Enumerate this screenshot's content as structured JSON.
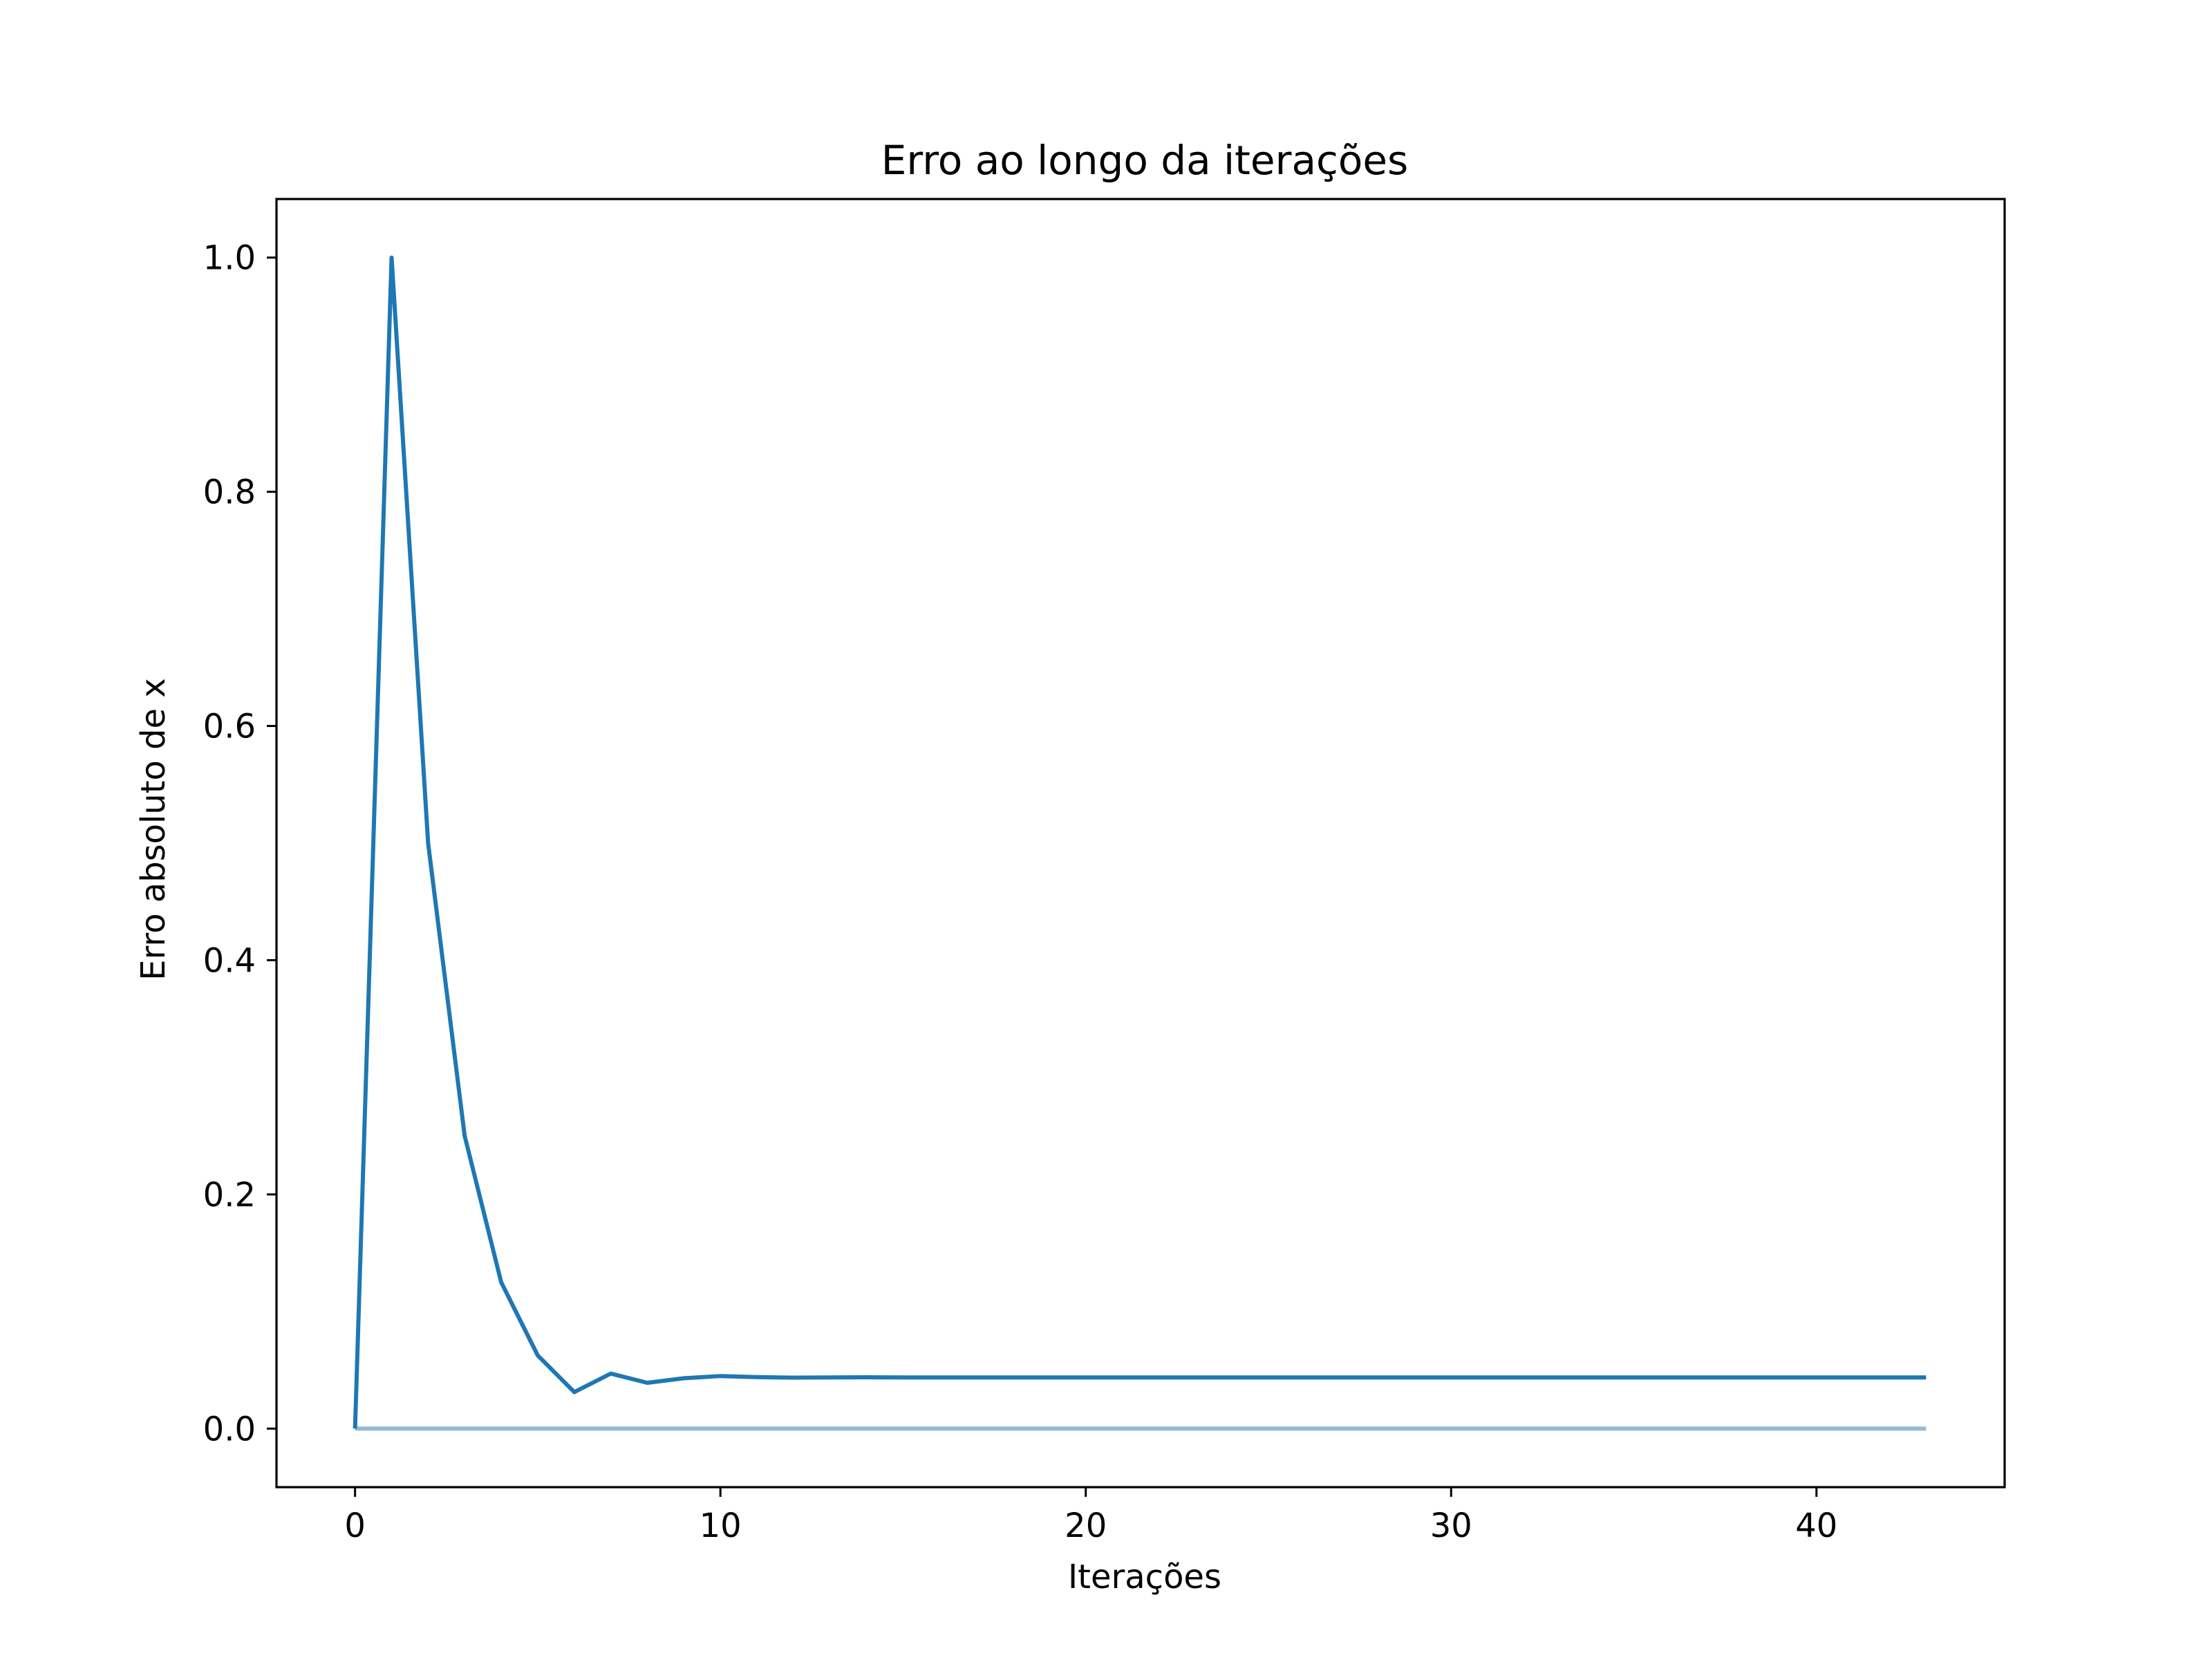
{
  "chart_data": {
    "type": "line",
    "title": "Erro ao longo da iterações",
    "xlabel": "Iterações",
    "ylabel": "Erro absoluto de x",
    "xlim": [
      -2.15,
      45.15
    ],
    "ylim": [
      -0.05,
      1.05
    ],
    "xticks": [
      0,
      10,
      20,
      30,
      40
    ],
    "xtick_labels": [
      "0",
      "10",
      "20",
      "30",
      "40"
    ],
    "yticks": [
      0.0,
      0.2,
      0.4,
      0.6,
      0.8,
      1.0
    ],
    "ytick_labels": [
      "0.0",
      "0.2",
      "0.4",
      "0.6",
      "0.8",
      "1.0"
    ],
    "grid": false,
    "legend": "none",
    "series": [
      {
        "color": "#1f77b4",
        "opacity": 1,
        "x": [
          0,
          1,
          2,
          3,
          4,
          5,
          6,
          7,
          8,
          9,
          10,
          11,
          12,
          13,
          14,
          15,
          16,
          17,
          18,
          19,
          20,
          21,
          22,
          23,
          24,
          25,
          26,
          27,
          28,
          29,
          30,
          31,
          32,
          33,
          34,
          35,
          36,
          37,
          38,
          39,
          40,
          41,
          42,
          43
        ],
        "values": [
          0.0,
          1.0,
          0.5,
          0.25,
          0.125,
          0.0625,
          0.0312,
          0.047,
          0.0391,
          0.043,
          0.0449,
          0.044,
          0.0435,
          0.0437,
          0.0438,
          0.0437,
          0.0437,
          0.0437,
          0.0437,
          0.0437,
          0.0437,
          0.0437,
          0.0437,
          0.0437,
          0.0437,
          0.0437,
          0.0437,
          0.0437,
          0.0437,
          0.0437,
          0.0437,
          0.0437,
          0.0437,
          0.0437,
          0.0437,
          0.0437,
          0.0437,
          0.0437,
          0.0437,
          0.0437,
          0.0437,
          0.0437,
          0.0437,
          0.0437
        ]
      },
      {
        "color": "#1f77b4",
        "opacity": 0.5,
        "x": [
          0,
          1,
          2,
          3,
          4,
          5,
          6,
          7,
          8,
          9,
          10,
          11,
          12,
          13,
          14,
          15,
          16,
          17,
          18,
          19,
          20,
          21,
          22,
          23,
          24,
          25,
          26,
          27,
          28,
          29,
          30,
          31,
          32,
          33,
          34,
          35,
          36,
          37,
          38,
          39,
          40,
          41,
          42,
          43
        ],
        "values": [
          0,
          0,
          0,
          0,
          0,
          0,
          0,
          0,
          0,
          0,
          0,
          0,
          0,
          0,
          0,
          0,
          0,
          0,
          0,
          0,
          0,
          0,
          0,
          0,
          0,
          0,
          0,
          0,
          0,
          0,
          0,
          0,
          0,
          0,
          0,
          0,
          0,
          0,
          0,
          0,
          0,
          0,
          0,
          0
        ]
      }
    ]
  }
}
